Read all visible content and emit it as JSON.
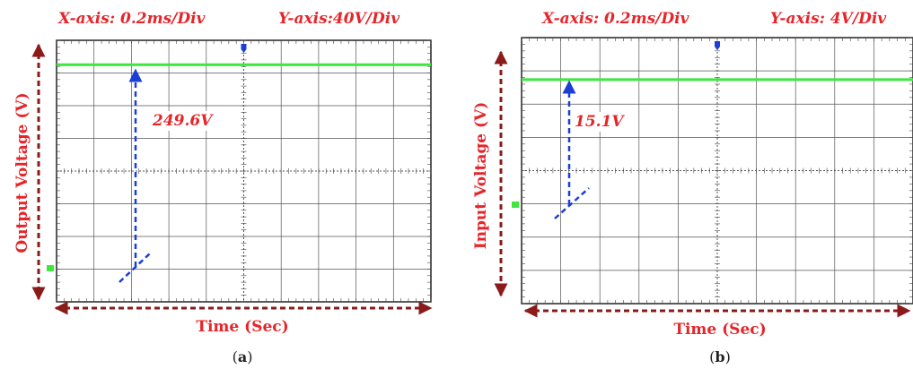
{
  "chart_data": [
    {
      "type": "line",
      "caption": "a",
      "header_x": "X-axis: 0.2ms/Div",
      "header_y": "Y-axis:40V/Div",
      "ylabel": "Output Voltage (V)",
      "xlabel": "Time (Sec)",
      "annotation": "249.6V",
      "series": [
        {
          "x": [
            0,
            2.0
          ],
          "y": [
            249.6,
            249.6
          ],
          "color": "#3ee63e"
        }
      ],
      "xlim": [
        0,
        2.0
      ],
      "ylim": [
        0,
        320
      ],
      "divisions_x": 10,
      "divisions_y": 8,
      "grid": true
    },
    {
      "type": "line",
      "caption": "b",
      "header_x": "X-axis: 0.2ms/Div",
      "header_y": "Y-axis: 4V/Div",
      "ylabel": "Input Voltage (V)",
      "xlabel": "Time (Sec)",
      "annotation": "15.1V",
      "series": [
        {
          "x": [
            0,
            2.0
          ],
          "y": [
            15.1,
            15.1
          ],
          "color": "#3ee63e"
        }
      ],
      "xlim": [
        0,
        2.0
      ],
      "ylim": [
        -16,
        16
      ],
      "divisions_x": 10,
      "divisions_y": 8,
      "grid": true
    }
  ],
  "colors": {
    "trace": "#3ee63e",
    "marker": "#1a3ed6",
    "text": "#e6252a",
    "arrow": "#8b1a1a"
  }
}
